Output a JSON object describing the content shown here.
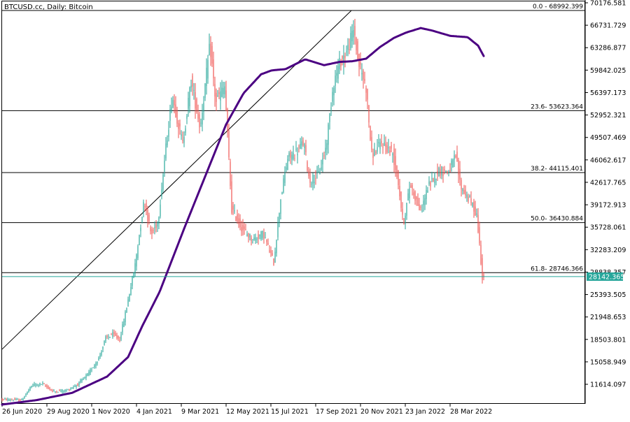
{
  "header": {
    "label": "BTCUSD.cc, Daily:  Bitcoin"
  },
  "colors": {
    "bull": "#26a69a",
    "bear": "#ef5350",
    "ma": "#4b0082",
    "fib": "#000000",
    "current_line": "#26a69a",
    "grid": "#000000"
  },
  "current_price": {
    "label": "28142.365",
    "value": 28142.365
  },
  "price_axis": {
    "labels": [
      "70176.581",
      "66731.729",
      "63286.877",
      "59842.025",
      "56397.173",
      "52952.321",
      "49507.469",
      "46062.617",
      "42617.765",
      "39172.913",
      "35728.061",
      "32283.209",
      "28838.357",
      "25393.505",
      "21948.653",
      "18503.801",
      "15058.949",
      "11614.097"
    ],
    "values": [
      70176.581,
      66731.729,
      63286.877,
      59842.025,
      56397.173,
      52952.321,
      49507.469,
      46062.617,
      42617.765,
      39172.913,
      35728.061,
      32283.209,
      28838.357,
      25393.505,
      21948.653,
      18503.801,
      15058.949,
      11614.097
    ],
    "min": 8400,
    "max": 70176.581
  },
  "time_axis": {
    "labels": [
      "26 Jun 2020",
      "29 Aug 2020",
      "1 Nov 2020",
      "4 Jan 2021",
      "9 Mar 2021",
      "12 May 2021",
      "15 Jul 2021",
      "17 Sep 2021",
      "20 Nov 2021",
      "23 Jan 2022",
      "28 Mar 2022"
    ],
    "day_offsets": [
      0,
      64,
      128,
      192,
      256,
      320,
      384,
      448,
      512,
      576,
      640
    ]
  },
  "fib_levels": [
    {
      "label": "0.0 - 68992.399",
      "value": 68992.399
    },
    {
      "label": "23.6- 53623.364",
      "value": 53623.364
    },
    {
      "label": "38.2- 44115.401",
      "value": 44115.401
    },
    {
      "label": "50.0- 36430.884",
      "value": 36430.884
    },
    {
      "label": "61.8- 28746.366",
      "value": 28746.366
    }
  ],
  "trendline": {
    "start": {
      "day": 0,
      "price": 17000
    },
    "end": {
      "day": 499,
      "price": 68992.399
    }
  },
  "chart_data": {
    "type": "candlestick",
    "symbol": "BTCUSD.cc",
    "timeframe": "Daily",
    "description": "Bitcoin",
    "series": [
      {
        "name": "price_path",
        "points": [
          [
            0,
            9300
          ],
          [
            30,
            9200
          ],
          [
            45,
            11500
          ],
          [
            60,
            11700
          ],
          [
            75,
            10500
          ],
          [
            95,
            10700
          ],
          [
            110,
            11600
          ],
          [
            125,
            13200
          ],
          [
            140,
            15600
          ],
          [
            150,
            18700
          ],
          [
            160,
            19300
          ],
          [
            170,
            18500
          ],
          [
            180,
            23500
          ],
          [
            192,
            30000
          ],
          [
            205,
            40000
          ],
          [
            215,
            34500
          ],
          [
            225,
            36800
          ],
          [
            235,
            47000
          ],
          [
            245,
            56000
          ],
          [
            260,
            48500
          ],
          [
            272,
            58200
          ],
          [
            285,
            51000
          ],
          [
            299,
            63800
          ],
          [
            307,
            55000
          ],
          [
            320,
            57300
          ],
          [
            330,
            38500
          ],
          [
            345,
            35500
          ],
          [
            360,
            33800
          ],
          [
            375,
            34800
          ],
          [
            390,
            30300
          ],
          [
            400,
            40200
          ],
          [
            410,
            46300
          ],
          [
            420,
            47000
          ],
          [
            433,
            48800
          ],
          [
            441,
            42800
          ],
          [
            455,
            44000
          ],
          [
            465,
            48200
          ],
          [
            475,
            57700
          ],
          [
            485,
            61200
          ],
          [
            495,
            62800
          ],
          [
            505,
            66300
          ],
          [
            510,
            61400
          ],
          [
            522,
            57200
          ],
          [
            530,
            46800
          ],
          [
            545,
            48700
          ],
          [
            560,
            47100
          ],
          [
            568,
            42600
          ],
          [
            575,
            36100
          ],
          [
            585,
            42400
          ],
          [
            600,
            38100
          ],
          [
            610,
            41800
          ],
          [
            625,
            44400
          ],
          [
            640,
            44300
          ],
          [
            650,
            46600
          ],
          [
            657,
            42000
          ],
          [
            670,
            39900
          ],
          [
            680,
            37700
          ],
          [
            687,
            29500
          ],
          [
            688,
            28142
          ]
        ]
      },
      {
        "name": "moving_average",
        "points": [
          [
            0,
            8500
          ],
          [
            50,
            9200
          ],
          [
            100,
            10300
          ],
          [
            150,
            12800
          ],
          [
            180,
            15800
          ],
          [
            200,
            20500
          ],
          [
            225,
            25800
          ],
          [
            260,
            35500
          ],
          [
            290,
            43500
          ],
          [
            320,
            51500
          ],
          [
            345,
            56300
          ],
          [
            370,
            59200
          ],
          [
            385,
            59800
          ],
          [
            405,
            60000
          ],
          [
            433,
            61500
          ],
          [
            460,
            60600
          ],
          [
            482,
            61100
          ],
          [
            500,
            61200
          ],
          [
            520,
            61600
          ],
          [
            540,
            63400
          ],
          [
            560,
            64800
          ],
          [
            577,
            65600
          ],
          [
            598,
            66300
          ],
          [
            615,
            65900
          ],
          [
            640,
            65100
          ],
          [
            665,
            64900
          ],
          [
            680,
            63600
          ],
          [
            688,
            62000
          ]
        ]
      }
    ],
    "ylim": [
      8400,
      70176.581
    ]
  }
}
